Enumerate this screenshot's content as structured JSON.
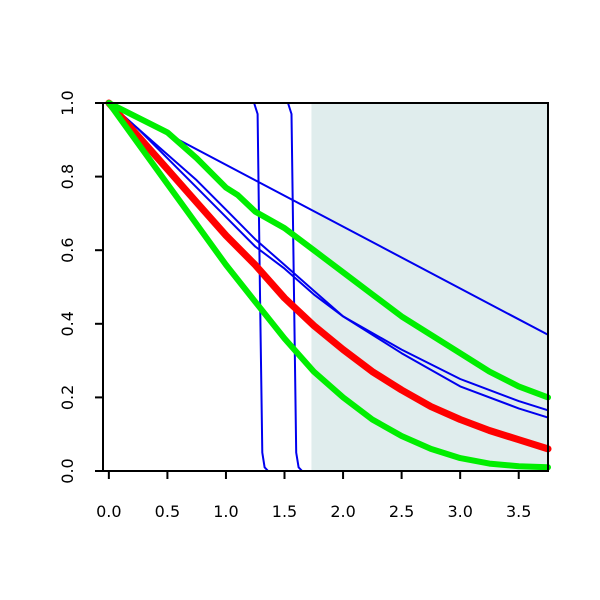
{
  "chart_data": {
    "type": "line",
    "title": "",
    "xlabel": "",
    "ylabel": "",
    "xlim": [
      -0.05,
      3.75
    ],
    "ylim": [
      0,
      1
    ],
    "x_ticks": [
      "0.0",
      "0.5",
      "1.0",
      "1.5",
      "2.0",
      "2.5",
      "3.0",
      "3.5"
    ],
    "y_ticks": [
      "0.0",
      "0.2",
      "0.4",
      "0.6",
      "0.8",
      "1.0"
    ],
    "grid": false,
    "shaded_region": {
      "x_from": 1.73,
      "x_to": 3.75,
      "color": "#e0eded"
    },
    "series": [
      {
        "color": "#0000ee",
        "width": 2,
        "points": [
          [
            0,
            1
          ],
          [
            3.75,
            0.37
          ]
        ]
      },
      {
        "color": "#0000ee",
        "width": 2,
        "points": [
          [
            0,
            1
          ],
          [
            0.25,
            0.93
          ],
          [
            0.5,
            0.85
          ],
          [
            0.75,
            0.77
          ],
          [
            1.0,
            0.69
          ],
          [
            1.25,
            0.61
          ],
          [
            1.5,
            0.55
          ],
          [
            1.75,
            0.48
          ],
          [
            2.0,
            0.42
          ],
          [
            2.5,
            0.33
          ],
          [
            3.0,
            0.25
          ],
          [
            3.5,
            0.19
          ],
          [
            3.75,
            0.165
          ]
        ]
      },
      {
        "color": "#0000ee",
        "width": 2,
        "points": [
          [
            0,
            1
          ],
          [
            0.25,
            0.93
          ],
          [
            0.5,
            0.86
          ],
          [
            0.75,
            0.79
          ],
          [
            1.0,
            0.71
          ],
          [
            1.25,
            0.63
          ],
          [
            1.5,
            0.56
          ],
          [
            1.75,
            0.49
          ],
          [
            2.0,
            0.42
          ],
          [
            2.5,
            0.32
          ],
          [
            3.0,
            0.23
          ],
          [
            3.5,
            0.17
          ],
          [
            3.75,
            0.145
          ]
        ]
      },
      {
        "color": "#0000ee",
        "width": 2,
        "points": [
          [
            0,
            1
          ],
          [
            1.24,
            1.0
          ],
          [
            1.27,
            0.97
          ],
          [
            1.29,
            0.5
          ],
          [
            1.31,
            0.05
          ],
          [
            1.33,
            0.01
          ],
          [
            1.36,
            0.0
          ]
        ]
      },
      {
        "color": "#0000ee",
        "width": 2,
        "points": [
          [
            0,
            1
          ],
          [
            1.53,
            1.0
          ],
          [
            1.56,
            0.97
          ],
          [
            1.58,
            0.5
          ],
          [
            1.6,
            0.05
          ],
          [
            1.62,
            0.01
          ],
          [
            1.65,
            0.0
          ]
        ]
      },
      {
        "color": "#ff0000",
        "width": 7,
        "points": [
          [
            0,
            1
          ],
          [
            0.25,
            0.91
          ],
          [
            0.5,
            0.82
          ],
          [
            0.75,
            0.73
          ],
          [
            1.0,
            0.64
          ],
          [
            1.25,
            0.56
          ],
          [
            1.5,
            0.47
          ],
          [
            1.75,
            0.395
          ],
          [
            2.0,
            0.33
          ],
          [
            2.25,
            0.27
          ],
          [
            2.5,
            0.22
          ],
          [
            2.75,
            0.175
          ],
          [
            3.0,
            0.14
          ],
          [
            3.25,
            0.11
          ],
          [
            3.5,
            0.085
          ],
          [
            3.75,
            0.06
          ]
        ]
      },
      {
        "color": "#00ee00",
        "width": 6,
        "points": [
          [
            0,
            1
          ],
          [
            0.25,
            0.96
          ],
          [
            0.5,
            0.92
          ],
          [
            0.75,
            0.85
          ],
          [
            1.0,
            0.77
          ],
          [
            1.1,
            0.75
          ],
          [
            1.25,
            0.705
          ],
          [
            1.5,
            0.66
          ],
          [
            1.75,
            0.6
          ],
          [
            2.0,
            0.54
          ],
          [
            2.25,
            0.48
          ],
          [
            2.5,
            0.42
          ],
          [
            2.75,
            0.37
          ],
          [
            3.0,
            0.32
          ],
          [
            3.25,
            0.27
          ],
          [
            3.5,
            0.23
          ],
          [
            3.75,
            0.2
          ]
        ]
      },
      {
        "color": "#00ee00",
        "width": 6,
        "points": [
          [
            0,
            1
          ],
          [
            0.25,
            0.89
          ],
          [
            0.5,
            0.78
          ],
          [
            0.75,
            0.67
          ],
          [
            1.0,
            0.56
          ],
          [
            1.25,
            0.46
          ],
          [
            1.5,
            0.36
          ],
          [
            1.75,
            0.27
          ],
          [
            2.0,
            0.2
          ],
          [
            2.25,
            0.14
          ],
          [
            2.5,
            0.095
          ],
          [
            2.75,
            0.06
          ],
          [
            3.0,
            0.035
          ],
          [
            3.25,
            0.02
          ],
          [
            3.5,
            0.013
          ],
          [
            3.75,
            0.01
          ]
        ]
      }
    ]
  }
}
